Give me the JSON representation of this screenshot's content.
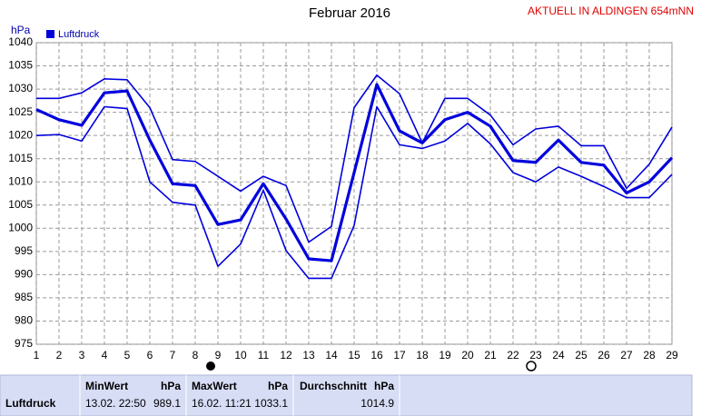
{
  "chart_data": {
    "type": "line",
    "title": "Februar 2016",
    "station": "AKTUELL IN ALDINGEN 654mNN",
    "y_label": "hPa",
    "x": [
      1,
      2,
      3,
      4,
      5,
      6,
      7,
      8,
      9,
      10,
      11,
      12,
      13,
      14,
      15,
      16,
      17,
      18,
      19,
      20,
      21,
      22,
      23,
      24,
      25,
      26,
      27,
      28,
      29
    ],
    "xlim": [
      1,
      29
    ],
    "ylim": [
      975,
      1040
    ],
    "yticks": [
      975,
      980,
      985,
      990,
      995,
      1000,
      1005,
      1010,
      1015,
      1020,
      1025,
      1030,
      1035,
      1040
    ],
    "grid": true,
    "series": [
      {
        "name": "Luftdruck",
        "color": "#0000dd",
        "width": 3.2,
        "values": [
          1025.6,
          1023.4,
          1022.2,
          1029.2,
          1029.6,
          1019,
          1009.6,
          1009.2,
          1000.8,
          1001.8,
          1009.6,
          1002,
          993.4,
          993,
          1012,
          1031,
          1021,
          1018.4,
          1023.4,
          1025,
          1022,
          1014.6,
          1014.2,
          1019,
          1014.2,
          1013.6,
          1007.6,
          1010,
          1015.2
        ]
      },
      {
        "color": "#0000dd",
        "width": 1.6,
        "values": [
          1028,
          1028,
          1029.2,
          1032.2,
          1032,
          1026,
          1014.8,
          1014.4,
          1011.2,
          1008,
          1011.2,
          1009.2,
          997,
          1000.4,
          1026,
          1033,
          1029,
          1018.4,
          1028,
          1028,
          1024.4,
          1018,
          1021.4,
          1022,
          1017.8,
          1017.8,
          1008.6,
          1013.8,
          1021.8
        ]
      },
      {
        "color": "#0000dd",
        "width": 1.6,
        "values": [
          1020,
          1020.2,
          1018.8,
          1026.2,
          1025.8,
          1010,
          1005.6,
          1005,
          991.8,
          996.6,
          1008.2,
          995.2,
          989.2,
          989.2,
          1000.6,
          1026.2,
          1018,
          1017.2,
          1018.8,
          1022.6,
          1018.2,
          1012,
          1010,
          1013.2,
          1011.2,
          1009,
          1006.6,
          1006.6,
          1011.6
        ]
      }
    ]
  },
  "table": {
    "row_label": "Luftdruck",
    "columns": [
      {
        "title": "MinWert",
        "unit": "hPa",
        "time": "13.02.  22:50",
        "value": 989.1
      },
      {
        "title": "MaxWert",
        "unit": "hPa",
        "time": "16.02.  11:21",
        "value": 1033.1
      },
      {
        "title": "Durchschnitt",
        "unit": "hPa",
        "value": 1014.9
      }
    ]
  }
}
